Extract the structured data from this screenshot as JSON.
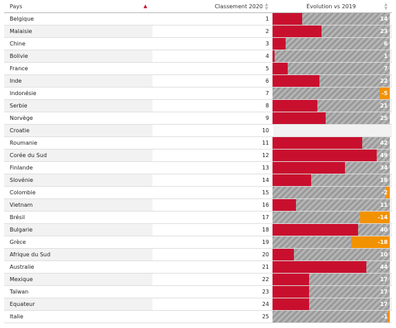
{
  "table": {
    "headers": {
      "country": "Pays",
      "rank": "Classement 2020",
      "evolution": "Évolution vs 2019"
    },
    "sort_icon": "triangle-up-red",
    "colors": {
      "positive": "#c8102e",
      "negative": "#f39200",
      "neutral_hatch": "#a8a8a8"
    },
    "evolution_scale_max": 55,
    "rows": [
      {
        "country": "Belgique",
        "rank": "1",
        "evolution": "14"
      },
      {
        "country": "Malaisie",
        "rank": "2",
        "evolution": "23"
      },
      {
        "country": "Chine",
        "rank": "3",
        "evolution": "6"
      },
      {
        "country": "Bolivie",
        "rank": "4",
        "evolution": "1"
      },
      {
        "country": "France",
        "rank": "5",
        "evolution": "7"
      },
      {
        "country": "Inde",
        "rank": "6",
        "evolution": "22"
      },
      {
        "country": "Indonésie",
        "rank": "7",
        "evolution": "-5"
      },
      {
        "country": "Serbie",
        "rank": "8",
        "evolution": "21"
      },
      {
        "country": "Norvège",
        "rank": "9",
        "evolution": "25"
      },
      {
        "country": "Croatie",
        "rank": "10",
        "evolution": ""
      },
      {
        "country": "Roumanie",
        "rank": "11",
        "evolution": "42"
      },
      {
        "country": "Corée du Sud",
        "rank": "12",
        "evolution": "49"
      },
      {
        "country": "Finlande",
        "rank": "13",
        "evolution": "34"
      },
      {
        "country": "Slovénie",
        "rank": "14",
        "evolution": "18"
      },
      {
        "country": "Colombie",
        "rank": "15",
        "evolution": "-2"
      },
      {
        "country": "Vietnam",
        "rank": "16",
        "evolution": "11"
      },
      {
        "country": "Brésil",
        "rank": "17",
        "evolution": "-14"
      },
      {
        "country": "Bulgarie",
        "rank": "18",
        "evolution": "40"
      },
      {
        "country": "Grèce",
        "rank": "19",
        "evolution": "-18"
      },
      {
        "country": "Afrique du Sud",
        "rank": "20",
        "evolution": "10"
      },
      {
        "country": "Australie",
        "rank": "21",
        "evolution": "44"
      },
      {
        "country": "Mexique",
        "rank": "22",
        "evolution": "17"
      },
      {
        "country": "Taïwan",
        "rank": "23",
        "evolution": "17"
      },
      {
        "country": "Equateur",
        "rank": "24",
        "evolution": "17"
      },
      {
        "country": "Italie",
        "rank": "25",
        "evolution": "-1"
      }
    ]
  },
  "chart_data": {
    "type": "table",
    "columns": [
      "Pays",
      "Classement 2020",
      "Évolution vs 2019"
    ],
    "categories": [
      "Belgique",
      "Malaisie",
      "Chine",
      "Bolivie",
      "France",
      "Inde",
      "Indonésie",
      "Serbie",
      "Norvège",
      "Croatie",
      "Roumanie",
      "Corée du Sud",
      "Finlande",
      "Slovénie",
      "Colombie",
      "Vietnam",
      "Brésil",
      "Bulgarie",
      "Grèce",
      "Afrique du Sud",
      "Australie",
      "Mexique",
      "Taïwan",
      "Equateur",
      "Italie"
    ],
    "series": [
      {
        "name": "Classement 2020",
        "values": [
          1,
          2,
          3,
          4,
          5,
          6,
          7,
          8,
          9,
          10,
          11,
          12,
          13,
          14,
          15,
          16,
          17,
          18,
          19,
          20,
          21,
          22,
          23,
          24,
          25
        ]
      },
      {
        "name": "Évolution vs 2019",
        "values": [
          14,
          23,
          6,
          1,
          7,
          22,
          -5,
          21,
          25,
          null,
          42,
          49,
          34,
          18,
          -2,
          11,
          -14,
          40,
          -18,
          10,
          44,
          17,
          17,
          17,
          -1
        ]
      }
    ]
  }
}
